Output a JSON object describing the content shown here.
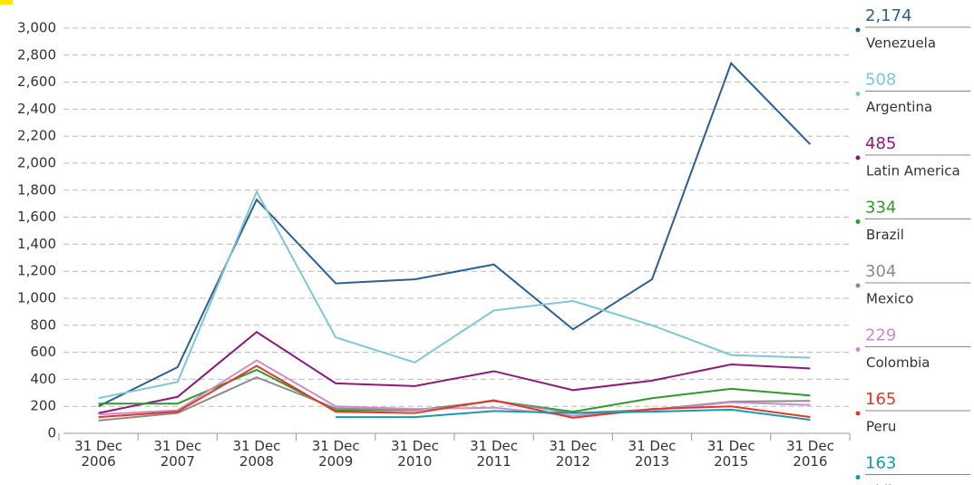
{
  "chart_data": {
    "type": "line",
    "categories": [
      "31 Dec 2006",
      "31 Dec 2007",
      "31 Dec 2008",
      "31 Dec 2009",
      "31 Dec 2010",
      "31 Dec 2011",
      "31 Dec 2012",
      "31 Dec 2013",
      "31 Dec 2015",
      "31 Dec 2016"
    ],
    "series": [
      {
        "name": "Venezuela",
        "color": "#2f5f8f",
        "values": [
          200,
          490,
          1730,
          1110,
          1140,
          1250,
          770,
          1140,
          2740,
          2140
        ],
        "latest": {
          "value": 2174,
          "label": "2,174"
        }
      },
      {
        "name": "Argentina",
        "color": "#7ec8d3",
        "values": [
          260,
          380,
          1790,
          710,
          525,
          910,
          980,
          800,
          580,
          560
        ],
        "latest": 508
      },
      {
        "name": "Latin America",
        "color": "#8b1a7a",
        "values": [
          150,
          270,
          750,
          370,
          350,
          460,
          320,
          390,
          510,
          480
        ],
        "latest": 485
      },
      {
        "name": "Brazil",
        "color": "#2e9a2e",
        "values": [
          220,
          220,
          470,
          170,
          170,
          240,
          160,
          260,
          330,
          280
        ],
        "latest": 334
      },
      {
        "name": "Mexico",
        "color": "#8c8c8c",
        "values": [
          95,
          150,
          415,
          185,
          170,
          240,
          150,
          175,
          235,
          240
        ],
        "latest": 304
      },
      {
        "name": "Colombia",
        "color": "#c98fc9",
        "values": [
          140,
          170,
          540,
          200,
          180,
          190,
          130,
          170,
          230,
          210
        ],
        "latest": 229
      },
      {
        "name": "Peru",
        "color": "#e0392b",
        "values": [
          120,
          160,
          500,
          160,
          150,
          245,
          115,
          180,
          200,
          120
        ],
        "latest": 165
      },
      {
        "name": "Chile",
        "color": "#1a9aa8",
        "values": [
          null,
          null,
          null,
          120,
          120,
          165,
          150,
          160,
          175,
          100
        ],
        "latest": 163
      }
    ],
    "ylim": [
      0,
      3000
    ],
    "yticks": [
      0,
      200,
      400,
      600,
      800,
      {
        "value": 1000,
        "label": "1,000"
      },
      {
        "value": 1200,
        "label": "1,200"
      },
      {
        "value": 1400,
        "label": "1,400"
      },
      {
        "value": 1600,
        "label": "1,600"
      },
      {
        "value": 1800,
        "label": "1,800"
      },
      {
        "value": 2000,
        "label": "2,000"
      },
      {
        "value": 2200,
        "label": "2,200"
      },
      {
        "value": 2400,
        "label": "2,400"
      },
      {
        "value": 2600,
        "label": "2,600"
      },
      {
        "value": 2800,
        "label": "2,800"
      },
      {
        "value": 3000,
        "label": "3,000"
      }
    ],
    "grid": true
  }
}
